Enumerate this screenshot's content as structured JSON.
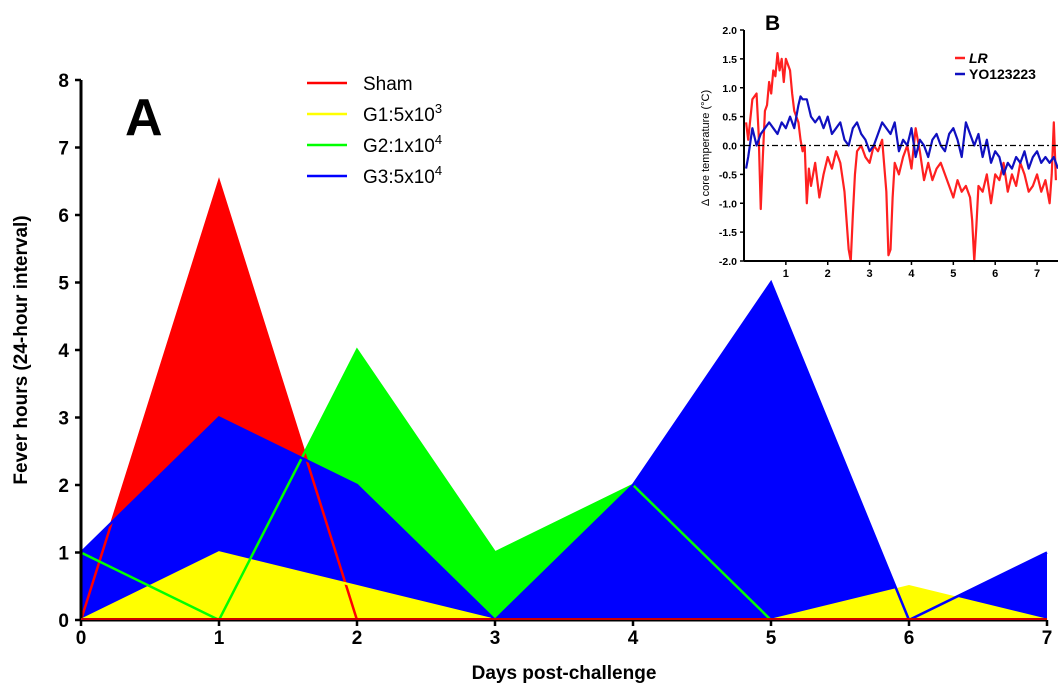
{
  "chart_data": [
    {
      "type": "area",
      "panel_label": "A",
      "xlabel": "Days post-challenge",
      "ylabel": "Fever hours (24-hour interval)",
      "xlim": [
        0,
        7
      ],
      "ylim": [
        0,
        8
      ],
      "x": [
        0,
        1,
        2,
        3,
        4,
        5,
        6,
        7
      ],
      "x_ticks": [
        "0",
        "1",
        "2",
        "3",
        "4",
        "5",
        "6",
        "7"
      ],
      "y_ticks": [
        "0",
        "1",
        "2",
        "3",
        "4",
        "5",
        "6",
        "7",
        "8"
      ],
      "grid": false,
      "legend_position": "top-center",
      "series": [
        {
          "name": "Sham",
          "name_base": "Sham",
          "name_sup": "",
          "color": "#ff0000",
          "values": [
            0,
            6.5,
            0,
            0,
            0,
            0,
            0,
            0
          ]
        },
        {
          "name": "G1:5x10^3",
          "name_base": "G1:5x10",
          "name_sup": "3",
          "color": "#ffff00",
          "values": [
            0,
            1,
            0.5,
            0,
            0,
            0,
            0.5,
            0
          ]
        },
        {
          "name": "G2:1x10^4",
          "name_base": "G2:1x10",
          "name_sup": "4",
          "color": "#00ff00",
          "values": [
            1,
            0,
            4,
            1,
            2,
            0,
            0,
            0
          ]
        },
        {
          "name": "G3:5x10^4",
          "name_base": "G3:5x10",
          "name_sup": "4",
          "color": "#0000ff",
          "values": [
            1,
            3,
            2,
            0,
            2,
            5,
            0,
            1
          ]
        }
      ]
    },
    {
      "type": "line",
      "panel_label": "B",
      "xlabel": "",
      "ylabel": "Δ core temperature (°C)",
      "xlim": [
        0,
        7.5
      ],
      "ylim": [
        -2.0,
        2.0
      ],
      "x_ticks": [
        "1",
        "2",
        "3",
        "4",
        "5",
        "6",
        "7"
      ],
      "y_ticks": [
        "-2.0",
        "-1.5",
        "-1.0",
        "-0.5",
        "0.0",
        "0.5",
        "1.0",
        "1.5",
        "2.0"
      ],
      "reference_line": 0,
      "grid": false,
      "legend_position": "top-right",
      "series": [
        {
          "name": "LR",
          "color": "#ff2020",
          "x": [
            0.05,
            0.1,
            0.2,
            0.3,
            0.35,
            0.4,
            0.45,
            0.5,
            0.55,
            0.6,
            0.65,
            0.7,
            0.75,
            0.8,
            0.85,
            0.9,
            0.95,
            1.0,
            1.05,
            1.1,
            1.15,
            1.2,
            1.25,
            1.3,
            1.35,
            1.4,
            1.45,
            1.5,
            1.55,
            1.6,
            1.7,
            1.8,
            1.9,
            2.0,
            2.1,
            2.2,
            2.3,
            2.4,
            2.5,
            2.55,
            2.6,
            2.65,
            2.7,
            2.8,
            2.9,
            3.0,
            3.1,
            3.2,
            3.3,
            3.4,
            3.45,
            3.5,
            3.55,
            3.6,
            3.7,
            3.8,
            3.9,
            4.0,
            4.1,
            4.2,
            4.3,
            4.4,
            4.5,
            4.6,
            4.7,
            4.8,
            4.9,
            5.0,
            5.1,
            5.2,
            5.3,
            5.4,
            5.45,
            5.5,
            5.55,
            5.6,
            5.7,
            5.8,
            5.9,
            6.0,
            6.1,
            6.2,
            6.3,
            6.4,
            6.5,
            6.6,
            6.7,
            6.8,
            6.9,
            7.0,
            7.1,
            7.2,
            7.3,
            7.35,
            7.4,
            7.45
          ],
          "values": [
            0.4,
            0.1,
            0.8,
            0.9,
            0.2,
            -1.1,
            -0.2,
            0.6,
            0.7,
            1.1,
            0.9,
            1.3,
            1.2,
            1.6,
            1.3,
            1.5,
            1.1,
            1.5,
            1.4,
            1.3,
            0.9,
            0.6,
            0.5,
            0.4,
            0.1,
            -0.1,
            0.0,
            -1.0,
            -0.4,
            -0.7,
            -0.3,
            -0.9,
            -0.5,
            -0.2,
            -0.4,
            -0.1,
            -0.3,
            -0.8,
            -1.8,
            -2.0,
            -1.2,
            -0.5,
            -0.1,
            0.0,
            -0.2,
            -0.3,
            0.0,
            -0.1,
            0.1,
            -0.8,
            -1.9,
            -1.8,
            -0.9,
            -0.3,
            -0.5,
            -0.2,
            0.0,
            -0.4,
            0.3,
            -0.1,
            -0.6,
            -0.3,
            -0.6,
            -0.4,
            -0.3,
            -0.5,
            -0.7,
            -0.9,
            -0.6,
            -0.8,
            -0.7,
            -0.9,
            -1.3,
            -2.0,
            -1.4,
            -0.7,
            -0.8,
            -0.5,
            -1.0,
            -0.5,
            -0.6,
            -0.3,
            -0.8,
            -0.5,
            -0.7,
            -0.3,
            -0.5,
            -0.8,
            -0.7,
            -0.5,
            -0.8,
            -0.6,
            -1.0,
            -0.5,
            0.4,
            -0.6
          ]
        },
        {
          "name": "YO123223",
          "color": "#1010c0",
          "x": [
            0.05,
            0.1,
            0.2,
            0.3,
            0.4,
            0.5,
            0.6,
            0.7,
            0.8,
            0.9,
            1.0,
            1.1,
            1.2,
            1.3,
            1.35,
            1.4,
            1.5,
            1.6,
            1.7,
            1.8,
            1.9,
            2.0,
            2.1,
            2.2,
            2.3,
            2.4,
            2.5,
            2.6,
            2.7,
            2.8,
            2.9,
            3.0,
            3.1,
            3.2,
            3.3,
            3.4,
            3.5,
            3.6,
            3.7,
            3.8,
            3.9,
            4.0,
            4.1,
            4.2,
            4.3,
            4.4,
            4.5,
            4.6,
            4.7,
            4.8,
            4.9,
            5.0,
            5.1,
            5.2,
            5.3,
            5.4,
            5.5,
            5.6,
            5.7,
            5.8,
            5.9,
            6.0,
            6.1,
            6.2,
            6.3,
            6.4,
            6.5,
            6.6,
            6.7,
            6.8,
            6.9,
            7.0,
            7.1,
            7.2,
            7.3,
            7.4,
            7.5
          ],
          "values": [
            -0.4,
            -0.2,
            0.3,
            0.0,
            0.2,
            0.3,
            0.4,
            0.3,
            0.2,
            0.4,
            0.3,
            0.5,
            0.3,
            0.7,
            0.85,
            0.8,
            0.8,
            0.5,
            0.4,
            0.5,
            0.3,
            0.5,
            0.2,
            0.3,
            0.4,
            0.1,
            0.0,
            0.3,
            0.4,
            0.2,
            0.1,
            -0.1,
            0.0,
            0.2,
            0.4,
            0.3,
            0.2,
            0.4,
            -0.1,
            0.1,
            0.0,
            0.3,
            -0.2,
            0.1,
            0.0,
            -0.2,
            0.1,
            0.2,
            0.0,
            -0.1,
            0.2,
            0.3,
            0.1,
            -0.2,
            0.4,
            0.2,
            0.0,
            0.2,
            -0.2,
            0.1,
            -0.3,
            -0.1,
            -0.2,
            -0.5,
            -0.3,
            -0.4,
            -0.2,
            -0.3,
            -0.1,
            -0.4,
            -0.2,
            -0.1,
            -0.3,
            -0.2,
            -0.3,
            -0.2,
            -0.4
          ]
        }
      ]
    }
  ]
}
